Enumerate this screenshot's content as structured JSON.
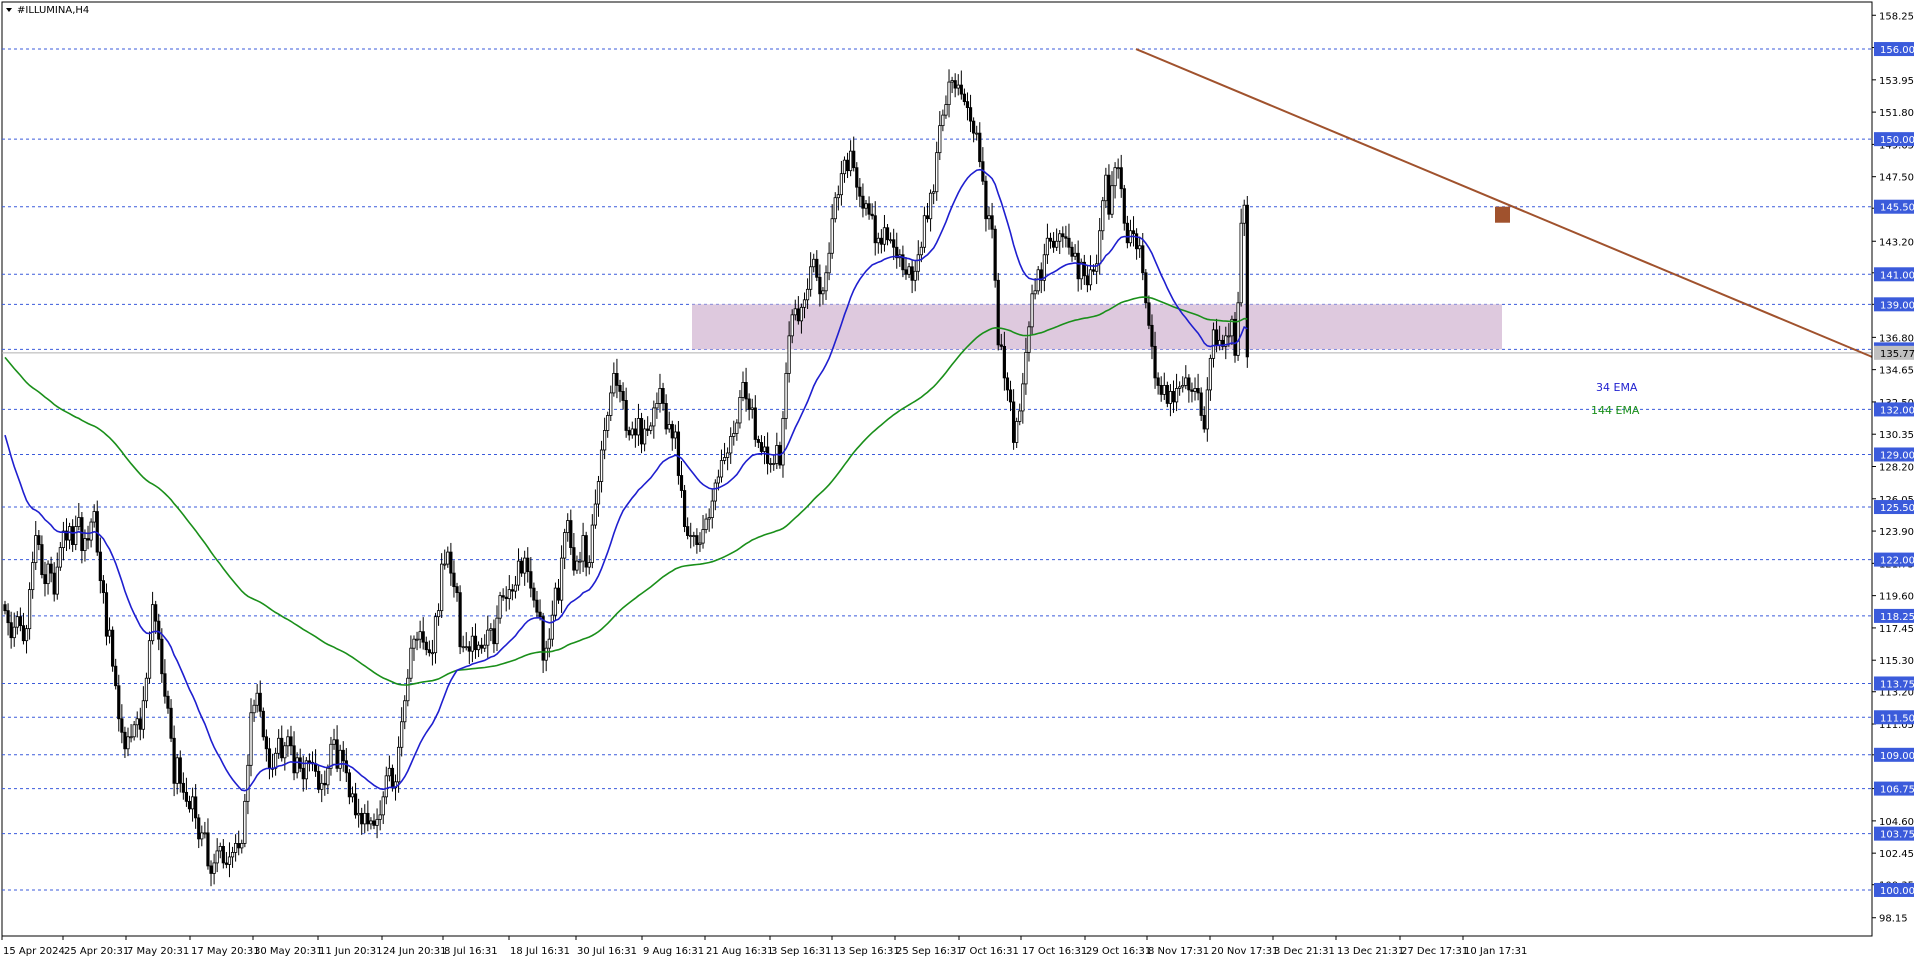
{
  "chart_data": {
    "type": "candlestick",
    "title": "#ILLUMINA,H4",
    "ylim": [
      97.0,
      159.0
    ],
    "y_ticks": [
      "98.15",
      "100.35",
      "102.45",
      "104.60",
      "106.75",
      "109.00",
      "111.05",
      "113.20",
      "115.30",
      "117.45",
      "119.60",
      "121.75",
      "123.90",
      "126.05",
      "128.20",
      "130.35",
      "132.50",
      "134.65",
      "136.80",
      "139.00",
      "141.10",
      "143.20",
      "145.40",
      "147.50",
      "149.65",
      "151.80",
      "153.95",
      "156.10",
      "158.25"
    ],
    "x_labels": [
      "15 Apr 2024",
      "25 Apr 20:31",
      "7 May 20:31",
      "17 May 20:31",
      "30 May 20:31",
      "11 Jun 20:31",
      "24 Jun 20:31",
      "8 Jul 16:31",
      "18 Jul 16:31",
      "30 Jul 16:31",
      "9 Aug 16:31",
      "21 Aug 16:31",
      "3 Sep 16:31",
      "13 Sep 16:31",
      "25 Sep 16:31",
      "7 Oct 16:31",
      "17 Oct 16:31",
      "29 Oct 16:31",
      "8 Nov 17:31",
      "20 Nov 17:31",
      "3 Dec 21:31",
      "13 Dec 21:31",
      "27 Dec 17:31",
      "10 Jan 17:31"
    ],
    "levels": [
      "156.00",
      "150.00",
      "145.50",
      "141.00",
      "139.00",
      "136.00",
      "132.00",
      "129.00",
      "125.50",
      "122.00",
      "118.25",
      "113.75",
      "111.50",
      "109.00",
      "106.75",
      "103.75",
      "100.00"
    ],
    "current_price": "135.77",
    "zone": {
      "from": 136.0,
      "to": 139.0,
      "color": "#d8bfd8"
    },
    "trendline": {
      "from": [
        895,
        156.0
      ],
      "to": [
        1230,
        135.8
      ],
      "color": "#a0522d"
    },
    "marker_price": 145.5,
    "ema_labels": [
      {
        "text": "34 EMA",
        "color": "#1f1fcf"
      },
      {
        "text": "144 EMA",
        "color": "#1a8f1a"
      }
    ],
    "close": [
      118.6,
      117.8,
      116.8,
      117.5,
      118.2,
      117.6,
      116.6,
      117.4,
      120.0,
      121.8,
      123.6,
      123.0,
      121.0,
      120.4,
      121.7,
      121.1,
      119.7,
      121.5,
      122.8,
      123.9,
      123.3,
      124.2,
      123.0,
      124.2,
      124.8,
      122.6,
      123.4,
      123.3,
      124.5,
      125.2,
      122.5,
      120.6,
      119.8,
      116.9,
      117.3,
      114.9,
      113.6,
      111.4,
      110.5,
      109.4,
      110.2,
      110.2,
      111.0,
      111.4,
      110.7,
      112.6,
      114.1,
      116.6,
      119.0,
      117.9,
      116.7,
      114.4,
      112.9,
      112.1,
      110.1,
      107.1,
      108.8,
      107.1,
      106.5,
      105.9,
      105.4,
      106.2,
      104.8,
      103.4,
      103.8,
      103.8,
      101.6,
      101.1,
      101.8,
      102.6,
      102.9,
      101.8,
      101.7,
      102.2,
      102.5,
      103.1,
      102.8,
      103.1,
      105.9,
      108.3,
      111.8,
      112.3,
      113.1,
      111.9,
      110.2,
      109.4,
      108.1,
      108.1,
      109.1,
      110.1,
      108.8,
      109.6,
      110.2,
      109.6,
      107.8,
      108.8,
      108.1,
      107.4,
      108.6,
      108.5,
      108.4,
      107.9,
      106.7,
      107.1,
      107.0,
      108.1,
      109.7,
      110.0,
      108.1,
      109.3,
      108.6,
      107.8,
      106.2,
      106.4,
      105.0,
      105.1,
      104.4,
      105.1,
      104.4,
      104.6,
      104.3,
      104.7,
      105.0,
      106.2,
      107.6,
      108.1,
      106.8,
      107.2,
      109.5,
      111.2,
      112.6,
      114.1,
      116.1,
      116.7,
      116.7,
      117.2,
      116.5,
      116.0,
      115.8,
      115.8,
      118.2,
      118.6,
      121.7,
      121.7,
      122.5,
      121.1,
      120.2,
      119.8,
      116.2,
      116.2,
      116.2,
      115.9,
      116.9,
      116.0,
      116.3,
      116.1,
      116.3,
      117.3,
      117.4,
      116.4,
      118.1,
      119.6,
      119.5,
      119.4,
      120.0,
      119.9,
      120.3,
      121.9,
      121.1,
      122.1,
      121.2,
      120.1,
      119.3,
      118.5,
      118.2,
      115.3,
      116.1,
      116.7,
      118.3,
      120.1,
      119.3,
      122.1,
      123.8,
      124.6,
      122.8,
      121.3,
      121.9,
      121.9,
      123.6,
      121.5,
      121.8,
      124.3,
      125.7,
      127.2,
      129.3,
      130.6,
      131.6,
      133.1,
      134.4,
      133.6,
      133.2,
      132.6,
      130.6,
      130.3,
      130.7,
      130.3,
      131.4,
      129.7,
      130.7,
      130.6,
      130.9,
      132.1,
      132.4,
      133.4,
      132.4,
      130.7,
      131.0,
      130.1,
      130.5,
      127.6,
      126.6,
      124.2,
      123.6,
      123.6,
      123.6,
      123.0,
      123.1,
      124.0,
      124.7,
      124.8,
      125.9,
      127.1,
      127.5,
      128.6,
      128.8,
      129.1,
      130.2,
      130.4,
      131.1,
      132.8,
      133.8,
      132.7,
      132.0,
      132.1,
      130.0,
      129.8,
      129.2,
      129.5,
      128.4,
      128.4,
      128.4,
      129.6,
      128.3,
      131.4,
      134.4,
      136.9,
      138.3,
      138.7,
      137.9,
      138.8,
      139.3,
      140.0,
      141.5,
      142.0,
      140.8,
      139.7,
      139.9,
      141.1,
      142.4,
      144.7,
      146.1,
      146.3,
      147.7,
      148.6,
      147.9,
      149.2,
      148.1,
      146.8,
      146.2,
      145.4,
      145.7,
      145.0,
      144.9,
      143.1,
      143.4,
      143.0,
      144.1,
      143.3,
      143.3,
      142.8,
      142.1,
      142.3,
      141.3,
      141.0,
      141.5,
      140.6,
      141.2,
      142.3,
      142.8,
      144.9,
      144.7,
      146.4,
      146.5,
      149.1,
      150.9,
      151.6,
      152.3,
      153.8,
      153.9,
      153.4,
      153.6,
      153.0,
      152.5,
      152.1,
      151.2,
      150.4,
      150.4,
      148.5,
      147.2,
      144.7,
      144.9,
      144.0,
      140.6,
      136.3,
      136.2,
      134.1,
      133.3,
      132.5,
      129.8,
      131.2,
      131.9,
      133.7,
      135.8,
      137.5,
      139.7,
      139.9,
      141.3,
      140.6,
      142.3,
      143.4,
      143.2,
      142.8,
      143.2,
      143.7,
      143.5,
      143.4,
      142.8,
      142.2,
      142.4,
      140.7,
      141.8,
      140.9,
      140.3,
      141.3,
      141.2,
      141.7,
      143.9,
      145.9,
      147.6,
      145.0,
      146.9,
      148.1,
      148.1,
      146.7,
      144.4,
      143.1,
      143.9,
      143.7,
      142.7,
      142.9,
      141.1,
      139.1,
      137.6,
      136.2,
      134.1,
      133.6,
      133.0,
      133.6,
      132.4,
      133.2,
      132.5,
      133.4,
      133.5,
      133.6,
      134.1,
      133.3,
      133.2,
      133.4,
      133.1,
      131.6,
      130.7,
      133.3,
      135.4,
      137.3,
      136.3,
      136.6,
      136.2,
      136.9,
      136.9,
      138.0,
      135.6,
      139.1,
      144.4,
      145.6,
      135.5
    ]
  }
}
